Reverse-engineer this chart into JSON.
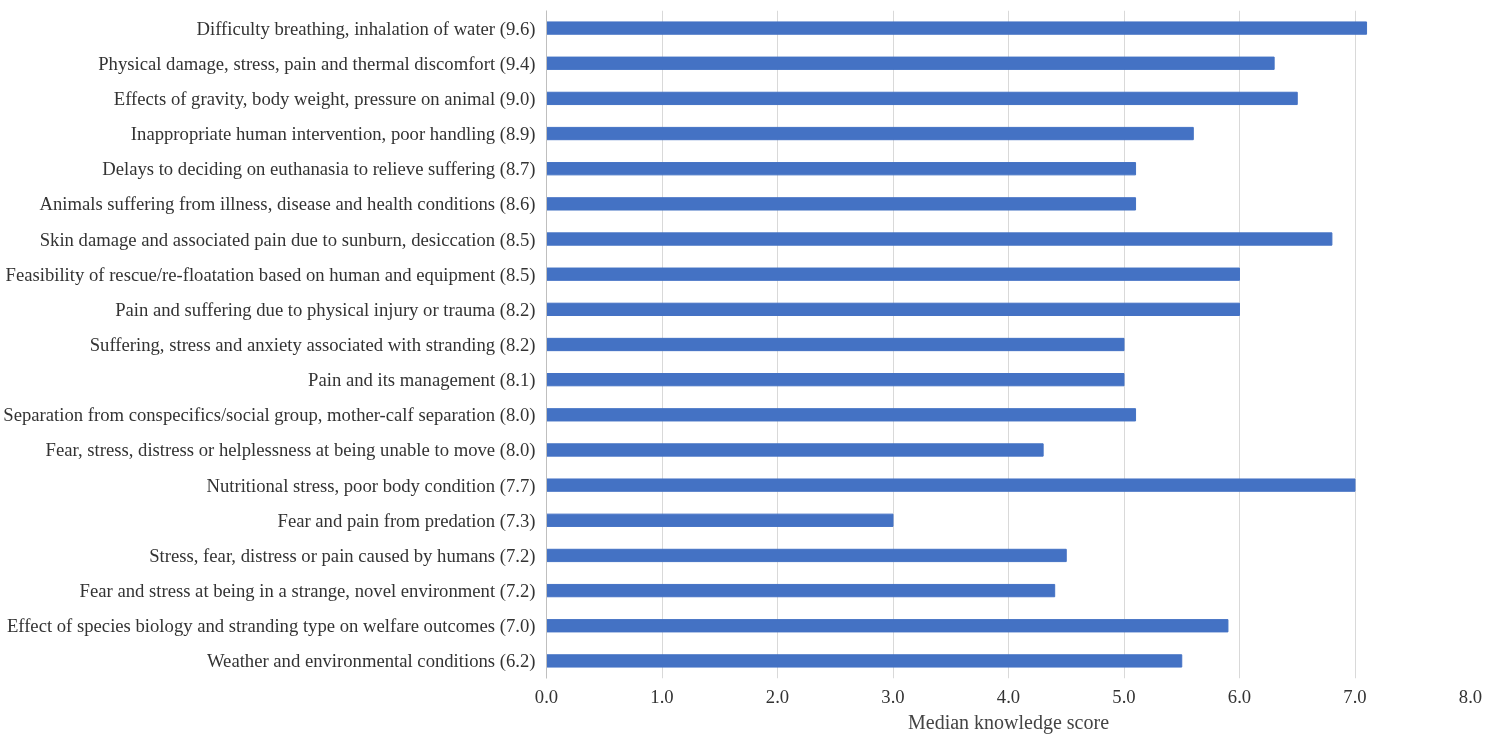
{
  "chart_data": {
    "type": "bar",
    "orientation": "horizontal",
    "xlabel": "Median knowledge score",
    "categories": [
      "Difficulty breathing, inhalation of water (9.6)",
      "Physical damage, stress, pain and thermal discomfort (9.4)",
      "Effects of gravity, body weight, pressure on animal (9.0)",
      "Inappropriate human intervention, poor handling (8.9)",
      "Delays to deciding on euthanasia to relieve suffering (8.7)",
      "Animals suffering from illness, disease and health conditions (8.6)",
      "Skin damage and associated pain due to sunburn, desiccation (8.5)",
      "Feasibility of rescue/re-floatation based on human and equipment (8.5)",
      "Pain and suffering due to physical injury or trauma (8.2)",
      "Suffering, stress and anxiety associated with stranding (8.2)",
      "Pain and its management (8.1)",
      "Separation from conspecifics/social group, mother-calf separation (8.0)",
      "Fear, stress, distress or helplessness at being unable to move (8.0)",
      "Nutritional stress, poor body condition (7.7)",
      "Fear and pain from predation (7.3)",
      "Stress, fear, distress or pain caused by humans (7.2)",
      "Fear and stress at being in a strange, novel environment (7.2)",
      "Effect of species biology and stranding type on welfare outcomes (7.0)",
      "Weather and environmental conditions (6.2)"
    ],
    "values": [
      7.1,
      6.3,
      6.5,
      5.6,
      5.1,
      5.1,
      6.8,
      6.0,
      6.0,
      5.0,
      5.0,
      5.1,
      4.3,
      7.0,
      3.0,
      4.5,
      4.4,
      5.9,
      5.5
    ],
    "color": "#4472c4",
    "xlim": [
      0,
      8
    ],
    "xticks": [
      {
        "value": 0,
        "label": "0.0"
      },
      {
        "value": 1,
        "label": "1.0"
      },
      {
        "value": 2,
        "label": "2.0"
      },
      {
        "value": 3,
        "label": "3.0"
      },
      {
        "value": 4,
        "label": "4.0"
      },
      {
        "value": 5,
        "label": "5.0"
      },
      {
        "value": 6,
        "label": "6.0"
      },
      {
        "value": 7,
        "label": "7.0"
      },
      {
        "value": 8,
        "label": "8.0"
      }
    ],
    "grid": "x"
  }
}
